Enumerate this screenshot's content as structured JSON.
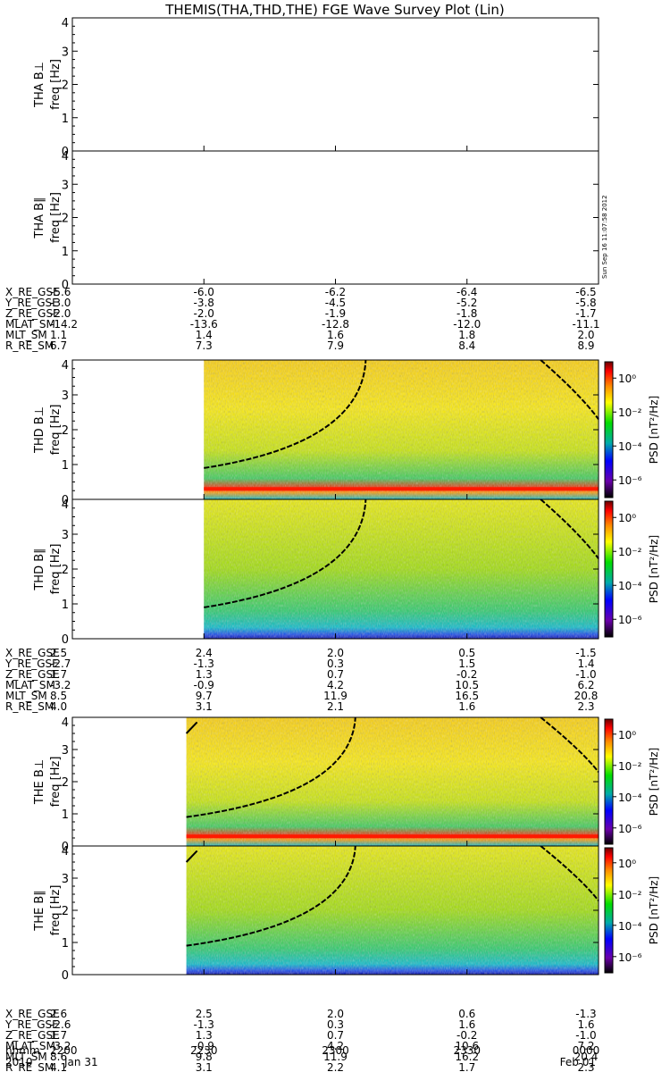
{
  "title": "THEMIS(THA,THD,THE) FGE Wave Survey Plot (Lin)",
  "timestamp": "Sun Sep 16 11:07:58 2012",
  "chart_data": {
    "type": "heatmap",
    "freq_ylim": [
      0,
      4
    ],
    "freq_ticks": [
      "0",
      "1",
      "2",
      "3",
      "4"
    ],
    "time_ticks": [
      "2200",
      "2230",
      "2300",
      "2330",
      "0000"
    ],
    "time_row_label": "hhmm",
    "date_row": {
      "year": "2010",
      "start": "Jan 31",
      "end": "Feb 01"
    },
    "colorbar": {
      "label": "PSD [nT²/Hz]",
      "ticks": [
        "10⁰",
        "10⁻²",
        "10⁻⁴",
        "10⁻⁶"
      ],
      "colors": [
        "#6a0000",
        "#ff0000",
        "#ff8c00",
        "#ffff00",
        "#00dd00",
        "#00aaaa",
        "#0000ff",
        "#6a00aa",
        "#000000"
      ]
    },
    "probes": [
      {
        "id": "THA",
        "has_data": false,
        "panels": [
          {
            "ylabel": "THA B⊥",
            "sublabel": "freq [Hz]"
          },
          {
            "ylabel": "THA B∥",
            "sublabel": "freq [Hz]"
          }
        ],
        "ephemeris": [
          {
            "label": "X_RE_GSE",
            "values": [
              "-5.6",
              "-6.0",
              "-6.2",
              "-6.4",
              "-6.5"
            ]
          },
          {
            "label": "Y_RE_GSE",
            "values": [
              "-3.0",
              "-3.8",
              "-4.5",
              "-5.2",
              "-5.8"
            ]
          },
          {
            "label": "Z_RE_GSE",
            "values": [
              "-2.0",
              "-2.0",
              "-1.9",
              "-1.8",
              "-1.7"
            ]
          },
          {
            "label": "MLAT_SM",
            "values": [
              "-14.2",
              "-13.6",
              "-12.8",
              "-12.0",
              "-11.1"
            ]
          },
          {
            "label": "MLT_SM",
            "values": [
              "1.1",
              "1.4",
              "1.6",
              "1.8",
              "2.0"
            ]
          },
          {
            "label": "R_RE_SM",
            "values": [
              "6.7",
              "7.3",
              "7.9",
              "8.4",
              "8.9"
            ]
          }
        ]
      },
      {
        "id": "THD",
        "has_data": true,
        "data_start": 2230,
        "panels": [
          {
            "ylabel": "THD B⊥",
            "sublabel": "freq [Hz]"
          },
          {
            "ylabel": "THD B∥",
            "sublabel": "freq [Hz]"
          }
        ],
        "ephemeris": [
          {
            "label": "X_RE_GSE",
            "values": [
              "2.5",
              "2.4",
              "2.0",
              "0.5",
              "-1.5"
            ]
          },
          {
            "label": "Y_RE_GSE",
            "values": [
              "-2.7",
              "-1.3",
              "0.3",
              "1.5",
              "1.4"
            ]
          },
          {
            "label": "Z_RE_GSE",
            "values": [
              "1.7",
              "1.3",
              "0.7",
              "-0.2",
              "-1.0"
            ]
          },
          {
            "label": "MLAT_SM",
            "values": [
              "-3.2",
              "-0.9",
              "4.2",
              "10.5",
              "6.2"
            ]
          },
          {
            "label": "MLT_SM",
            "values": [
              "8.5",
              "9.7",
              "11.9",
              "16.5",
              "20.8"
            ]
          },
          {
            "label": "R_RE_SM",
            "values": [
              "4.0",
              "3.1",
              "2.1",
              "1.6",
              "2.3"
            ]
          }
        ]
      },
      {
        "id": "THE",
        "has_data": true,
        "data_start": 2226,
        "panels": [
          {
            "ylabel": "THE B⊥",
            "sublabel": "freq [Hz]"
          },
          {
            "ylabel": "THE B∥",
            "sublabel": "freq [Hz]"
          }
        ],
        "ephemeris": [
          {
            "label": "X_RE_GSE",
            "values": [
              "2.6",
              "2.5",
              "2.0",
              "0.6",
              "-1.3"
            ]
          },
          {
            "label": "Y_RE_GSE",
            "values": [
              "-2.6",
              "-1.3",
              "0.3",
              "1.6",
              "1.6"
            ]
          },
          {
            "label": "Z_RE_GSE",
            "values": [
              "1.7",
              "1.3",
              "0.7",
              "-0.2",
              "-1.0"
            ]
          },
          {
            "label": "MLAT_SM",
            "values": [
              "-3.2",
              "-0.9",
              "4.2",
              "10.6",
              "7.2"
            ]
          },
          {
            "label": "MLT_SM",
            "values": [
              "8.6",
              "9.8",
              "11.9",
              "16.2",
              "20.4"
            ]
          },
          {
            "label": "R_RE_SM",
            "values": [
              "4.1",
              "3.1",
              "2.2",
              "1.7",
              "2.3"
            ]
          }
        ]
      }
    ]
  }
}
